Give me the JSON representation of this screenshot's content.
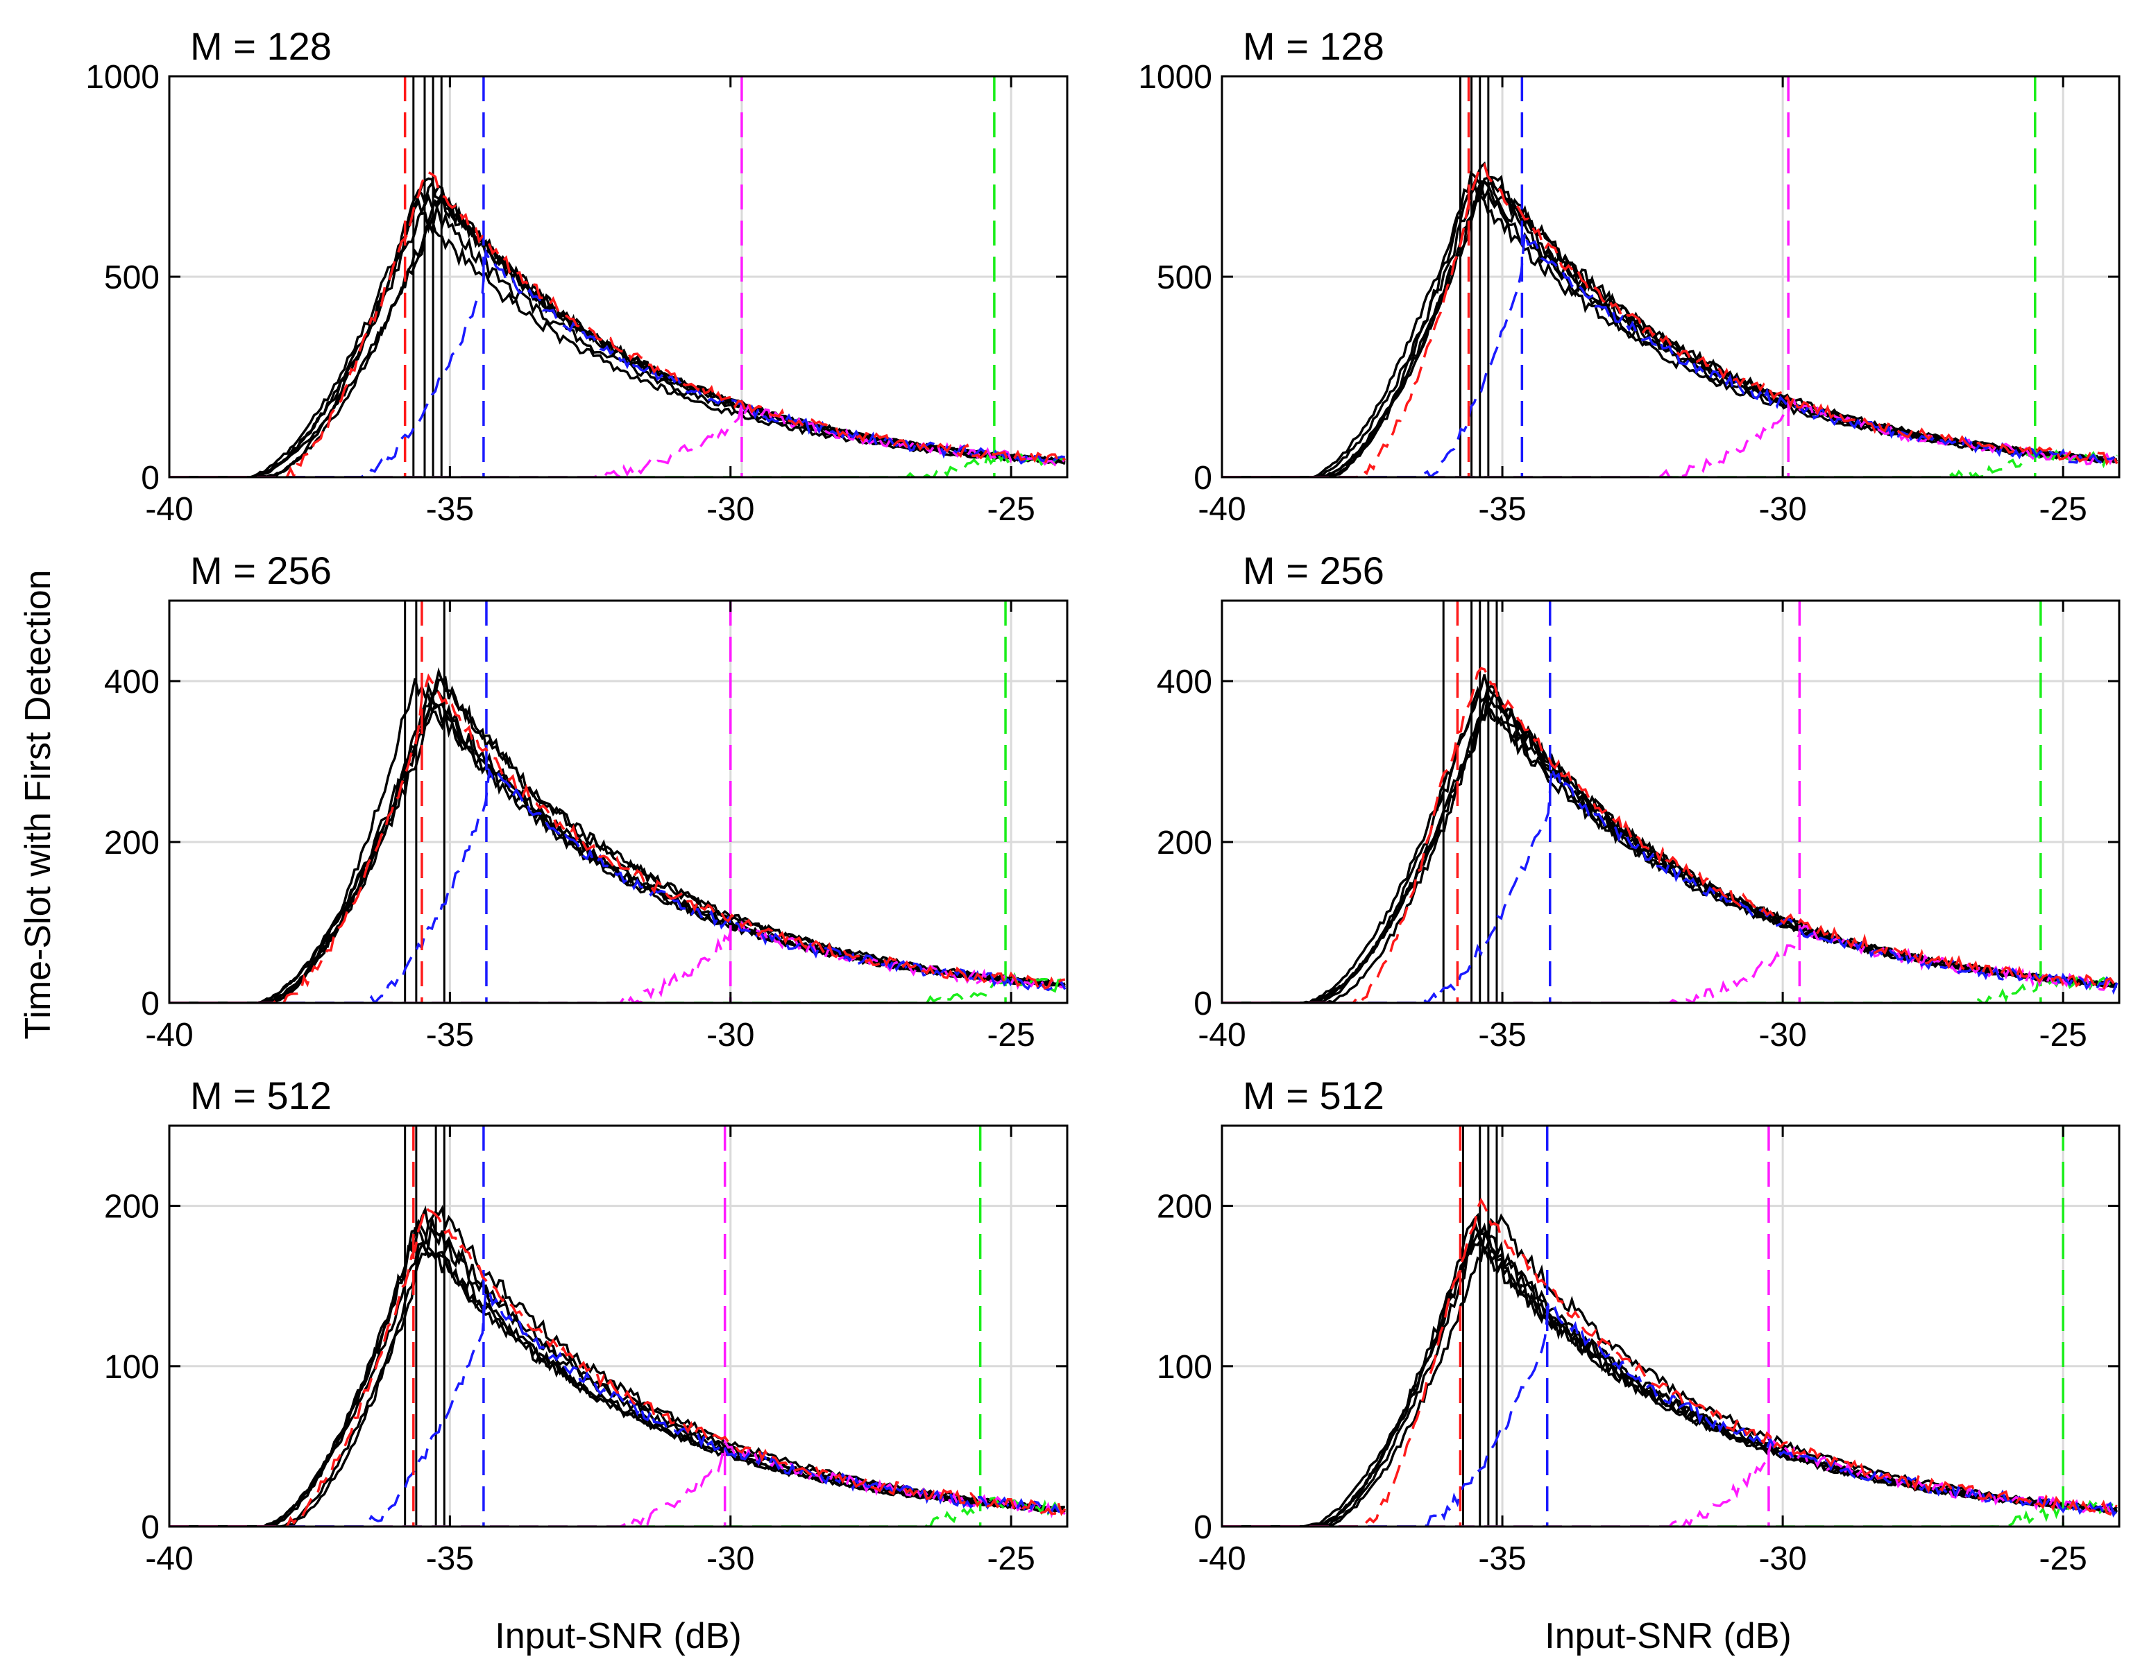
{
  "figure": {
    "ylabel": "Time-Slot with First Detection",
    "xlabel": "Input-SNR (dB)"
  },
  "colors": {
    "black": "#000000",
    "red": "#ff1a1a",
    "blue": "#1a1aff",
    "magenta": "#ff1aff",
    "green": "#1aee1a",
    "grid": "#dadada"
  },
  "chart_data": [
    {
      "type": "line",
      "title": "M = 128",
      "column": "left",
      "row": 1,
      "xlim": [
        -40,
        -24
      ],
      "ylim": [
        0,
        1000
      ],
      "xticks": [
        -40,
        -35,
        -30,
        -25
      ],
      "xtick_labels": [
        "-40",
        "-35",
        "-30",
        "-25"
      ],
      "yticks": [
        0,
        500,
        1000
      ],
      "ytick_labels": [
        "0",
        "500",
        "1000"
      ],
      "peak": 720,
      "black_onset": -38.4,
      "black_vlines": [
        -35.65,
        -35.45,
        -35.3,
        -35.15
      ],
      "onsets": {
        "red": -38.0,
        "blue": -36.6,
        "magenta": -32.4,
        "green": -26.8
      },
      "vlines": {
        "red": -35.8,
        "blue": -34.4,
        "magenta": -29.8,
        "green": -25.3
      },
      "gray_vlines": [
        -35.0,
        -29.8,
        -25.0
      ]
    },
    {
      "type": "line",
      "title": "M = 128",
      "column": "right",
      "row": 1,
      "xlim": [
        -40,
        -24
      ],
      "ylim": [
        0,
        1000
      ],
      "xticks": [
        -40,
        -35,
        -30,
        -25
      ],
      "xtick_labels": [
        "-40",
        "-35",
        "-30",
        "-25"
      ],
      "yticks": [
        0,
        500,
        1000
      ],
      "ytick_labels": [
        "0",
        "500",
        "1000"
      ],
      "peak": 740,
      "black_onset": -38.3,
      "black_vlines": [
        -35.75,
        -35.55,
        -35.4,
        -35.25
      ],
      "onsets": {
        "red": -37.6,
        "blue": -36.4,
        "magenta": -32.2,
        "green": -27.0
      },
      "vlines": {
        "red": -35.6,
        "blue": -34.65,
        "magenta": -29.9,
        "green": -25.5
      },
      "gray_vlines": [
        -35.0,
        -30.0,
        -25.0
      ]
    },
    {
      "type": "line",
      "title": "M = 256",
      "column": "left",
      "row": 2,
      "xlim": [
        -40,
        -24
      ],
      "ylim": [
        0,
        500
      ],
      "xticks": [
        -40,
        -35,
        -30,
        -25
      ],
      "xtick_labels": [
        "-40",
        "-35",
        "-30",
        "-25"
      ],
      "yticks": [
        0,
        200,
        400
      ],
      "ytick_labels": [
        "0",
        "200",
        "400"
      ],
      "peak": 385,
      "black_onset": -38.3,
      "black_vlines": [
        -35.8,
        -35.6,
        -35.1
      ],
      "onsets": {
        "red": -38.1,
        "blue": -36.5,
        "magenta": -32.0,
        "green": -26.5
      },
      "vlines": {
        "red": -35.5,
        "blue": -34.35,
        "magenta": -30.0,
        "green": -25.1
      },
      "gray_vlines": [
        -35.0,
        -30.0,
        -25.0
      ]
    },
    {
      "type": "line",
      "title": "M = 256",
      "column": "right",
      "row": 2,
      "xlim": [
        -40,
        -24
      ],
      "ylim": [
        0,
        500
      ],
      "xticks": [
        -40,
        -35,
        -30,
        -25
      ],
      "xtick_labels": [
        "-40",
        "-35",
        "-30",
        "-25"
      ],
      "yticks": [
        0,
        200,
        400
      ],
      "ytick_labels": [
        "0",
        "200",
        "400"
      ],
      "peak": 395,
      "black_onset": -38.4,
      "black_vlines": [
        -36.05,
        -35.55,
        -35.4,
        -35.25,
        -35.1
      ],
      "onsets": {
        "red": -37.6,
        "blue": -36.4,
        "magenta": -32.0,
        "green": -26.6
      },
      "vlines": {
        "red": -35.8,
        "blue": -34.15,
        "magenta": -29.7,
        "green": -25.4
      },
      "gray_vlines": [
        -35.0,
        -30.0,
        -25.0
      ]
    },
    {
      "type": "line",
      "title": "M = 512",
      "column": "left",
      "row": 3,
      "xlim": [
        -40,
        -24
      ],
      "ylim": [
        0,
        250
      ],
      "xticks": [
        -40,
        -35,
        -30,
        -25
      ],
      "xtick_labels": [
        "-40",
        "-35",
        "-30",
        "-25"
      ],
      "yticks": [
        0,
        100,
        200
      ],
      "ytick_labels": [
        "0",
        "100",
        "200"
      ],
      "peak": 190,
      "black_onset": -38.2,
      "black_vlines": [
        -35.8,
        -35.6,
        -35.25,
        -35.1
      ],
      "onsets": {
        "red": -38.0,
        "blue": -36.6,
        "magenta": -32.0,
        "green": -26.8
      },
      "vlines": {
        "red": -35.65,
        "blue": -34.4,
        "magenta": -30.1,
        "green": -25.55
      },
      "gray_vlines": [
        -35.0,
        -30.0,
        -25.0
      ]
    },
    {
      "type": "line",
      "title": "M = 512",
      "column": "right",
      "row": 3,
      "xlim": [
        -40,
        -24
      ],
      "ylim": [
        0,
        250
      ],
      "xticks": [
        -40,
        -35,
        -30,
        -25
      ],
      "xtick_labels": [
        "-40",
        "-35",
        "-30",
        "-25"
      ],
      "yticks": [
        0,
        100,
        200
      ],
      "ytick_labels": [
        "0",
        "100",
        "200"
      ],
      "peak": 190,
      "black_onset": -38.3,
      "black_vlines": [
        -35.7,
        -35.4,
        -35.25,
        -35.1
      ],
      "onsets": {
        "red": -37.5,
        "blue": -36.5,
        "magenta": -32.0,
        "green": -26.7
      },
      "vlines": {
        "red": -35.75,
        "blue": -34.2,
        "magenta": -30.25,
        "green": -25.0
      },
      "gray_vlines": [
        -35.0,
        -30.0,
        -25.0
      ]
    }
  ]
}
